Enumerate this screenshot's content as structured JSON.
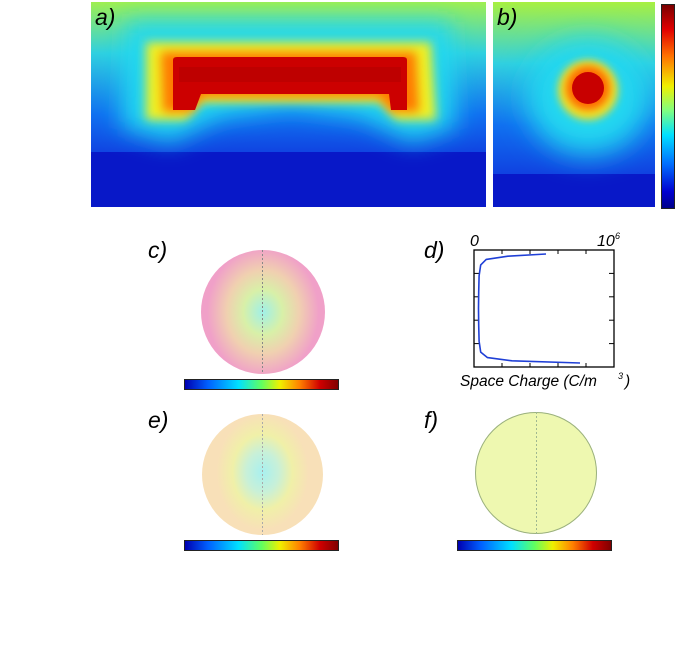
{
  "figure": {
    "panels": {
      "a": {
        "label": "a)"
      },
      "b": {
        "label": "b)"
      },
      "c": {
        "label": "c)"
      },
      "d": {
        "label": "d)"
      },
      "e": {
        "label": "e)"
      },
      "f": {
        "label": "f)"
      }
    },
    "colors": {
      "jet_blue": "#0000c8",
      "jet_cyan": "#00e0ff",
      "jet_yellow": "#f0f000",
      "jet_red": "#d00000",
      "curve_blue": "#1f3fd6"
    }
  },
  "chart_data": {
    "type": "line",
    "xlabel": "Space Charge (C/m",
    "xlabel_superscript": "3",
    "xlabel_suffix": ")",
    "x_tick_labels": [
      "0",
      "10",
      "6"
    ],
    "xlim": [
      0,
      1000000
    ],
    "series": [
      {
        "values": [
          [
            500000,
            0.0
          ],
          [
            220000,
            0.02
          ],
          [
            60000,
            0.05
          ],
          [
            20000,
            0.1
          ],
          [
            8000,
            0.2
          ],
          [
            5000,
            0.35
          ],
          [
            4000,
            0.5
          ],
          [
            5000,
            0.65
          ],
          [
            8000,
            0.8
          ],
          [
            20000,
            0.9
          ],
          [
            70000,
            0.95
          ],
          [
            250000,
            0.98
          ],
          [
            750000,
            1.0
          ]
        ]
      }
    ]
  }
}
